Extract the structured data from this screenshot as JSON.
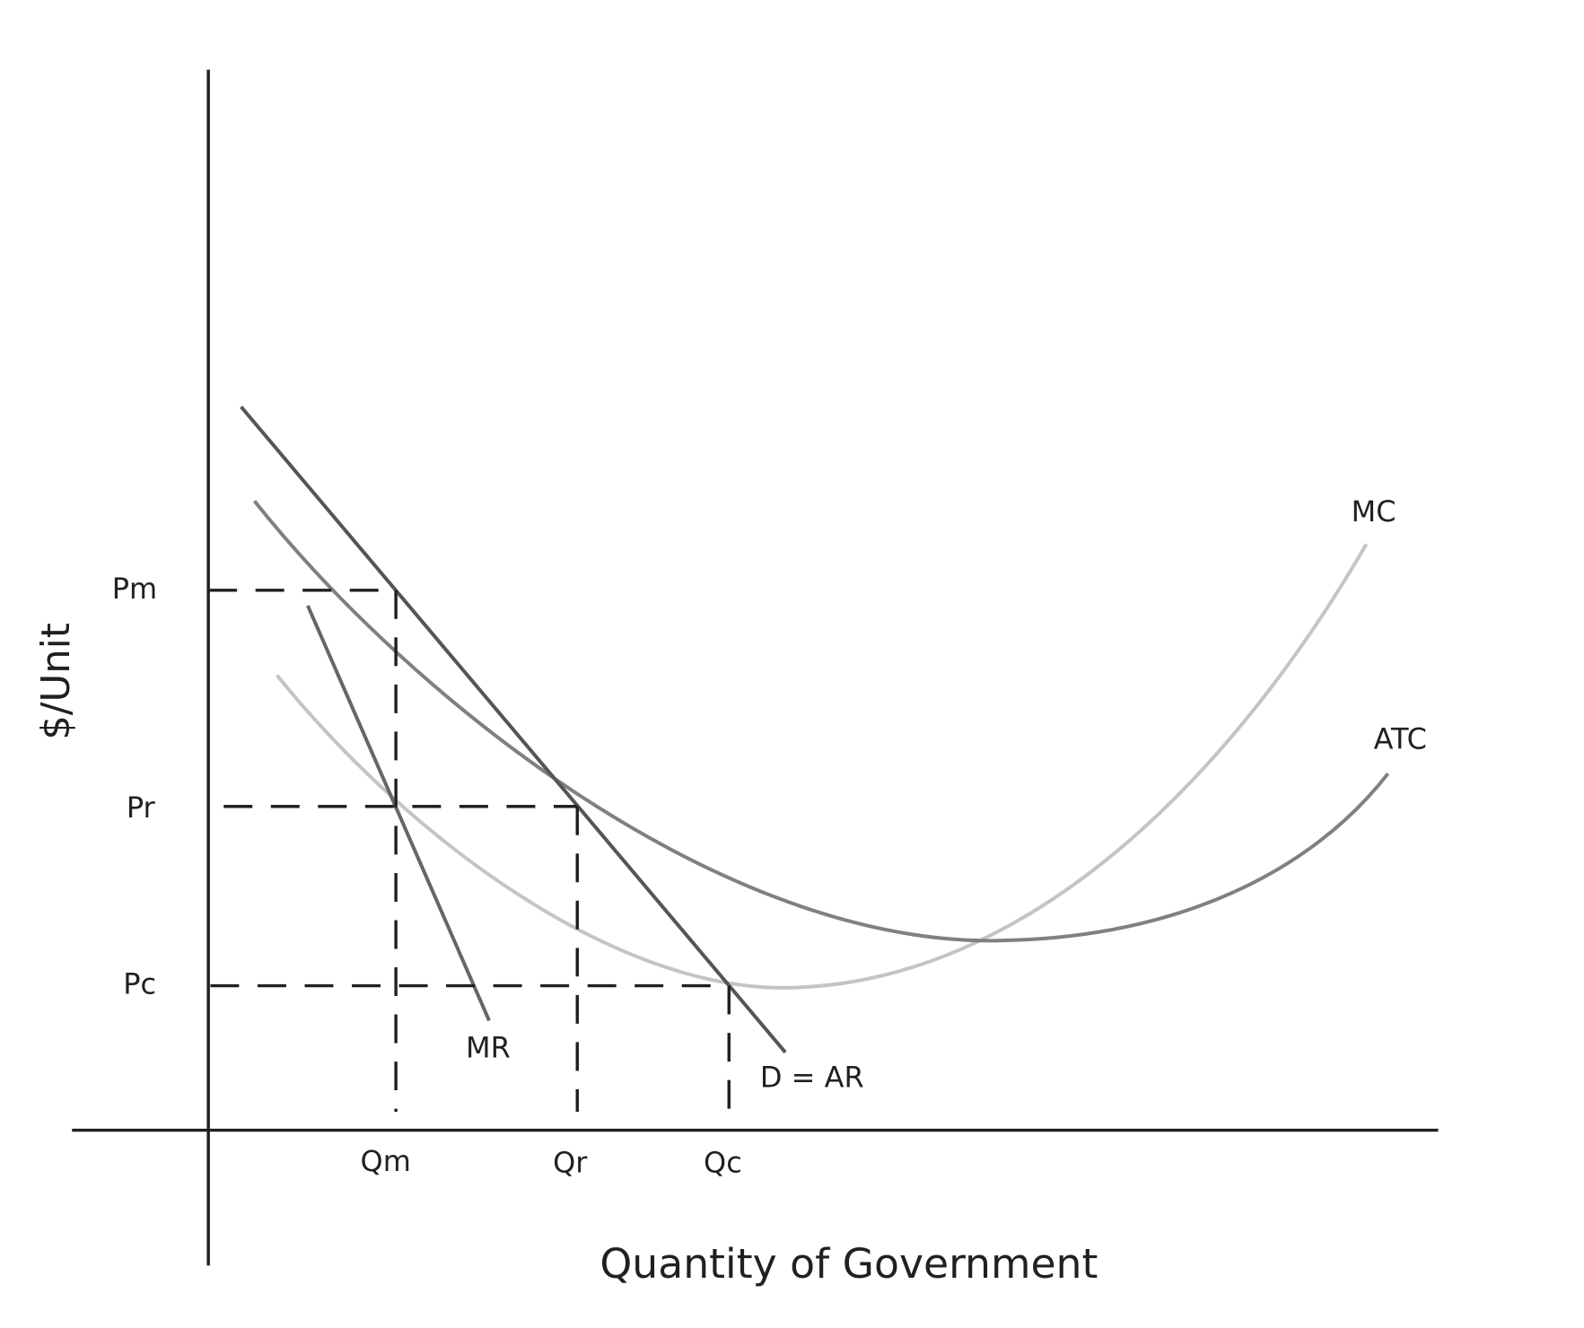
{
  "axes": {
    "y_title": "$/Unit",
    "x_title": "Quantity of Government"
  },
  "price_labels": [
    "Pm",
    "Pr",
    "Pc"
  ],
  "quantity_labels": [
    "Qm",
    "Qr",
    "Qc"
  ],
  "curve_labels": {
    "mc": "MC",
    "atc": "ATC",
    "demand": "D = AR",
    "mr": "MR"
  }
}
